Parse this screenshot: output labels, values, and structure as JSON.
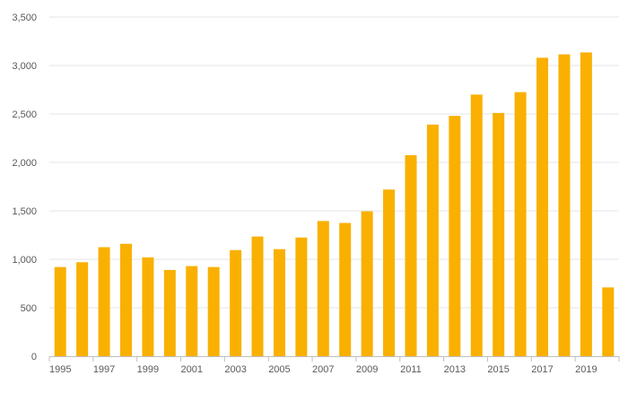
{
  "chart_data": {
    "type": "bar",
    "title": "",
    "xlabel": "",
    "ylabel": "",
    "categories": [
      "1995",
      "1996",
      "1997",
      "1998",
      "1999",
      "2000",
      "2001",
      "2002",
      "2003",
      "2004",
      "2005",
      "2006",
      "2007",
      "2008",
      "2009",
      "2010",
      "2011",
      "2012",
      "2013",
      "2014",
      "2015",
      "2016",
      "2017",
      "2018",
      "2019",
      "2020"
    ],
    "x_tick_labels": [
      "1995",
      "1997",
      "1999",
      "2001",
      "2003",
      "2005",
      "2007",
      "2009",
      "2011",
      "2013",
      "2015",
      "2017",
      "2019"
    ],
    "values": [
      920,
      970,
      1125,
      1160,
      1020,
      890,
      930,
      920,
      1095,
      1235,
      1105,
      1225,
      1395,
      1375,
      1495,
      1720,
      2075,
      2390,
      2480,
      2700,
      2510,
      2725,
      3080,
      3115,
      3135,
      710
    ],
    "ylim": [
      0,
      3500
    ],
    "y_ticks": [
      0,
      500,
      1000,
      1500,
      2000,
      2500,
      3000,
      3500
    ],
    "y_tick_labels": [
      "0",
      "500",
      "1,000",
      "1,500",
      "2,000",
      "2,500",
      "3,000",
      "3,500"
    ],
    "grid": true,
    "legend": "none",
    "colors": {
      "bar": "#F9B000",
      "grid": "#E6E6E6",
      "axis": "#BFBFBF",
      "tick_text": "#595959"
    }
  }
}
